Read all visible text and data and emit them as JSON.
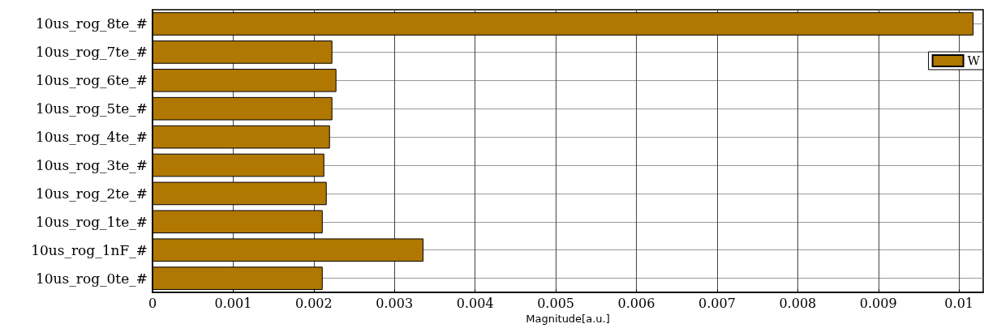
{
  "chart_data": {
    "type": "bar",
    "orientation": "horizontal",
    "categories": [
      "10us_rog_8te_#",
      "10us_rog_7te_#",
      "10us_rog_6te_#",
      "10us_rog_5te_#",
      "10us_rog_4te_#",
      "10us_rog_3te_#",
      "10us_rog_2te_#",
      "10us_rog_1te_#",
      "10us_rog_1nF_#",
      "10us_rog_0te_#"
    ],
    "series": [
      {
        "name": "W",
        "color": "#b07800",
        "values": [
          0.01018,
          0.00223,
          0.00228,
          0.00223,
          0.0022,
          0.00213,
          0.00216,
          0.00211,
          0.00336,
          0.00211
        ]
      }
    ],
    "xlabel": "Magnitude[a.u.]",
    "xlim": [
      0,
      0.0103
    ],
    "xticks": [
      0,
      0.001,
      0.002,
      0.003,
      0.004,
      0.005,
      0.006,
      0.007,
      0.008,
      0.009,
      0.01
    ],
    "grid": true,
    "legend": "top right"
  }
}
